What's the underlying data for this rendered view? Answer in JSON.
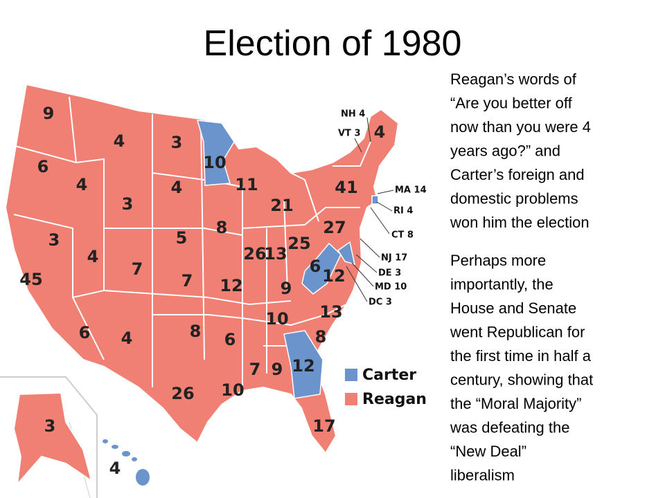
{
  "slide": {
    "title": "Election of 1980",
    "paragraphs": [
      [
        "Reagan’s words of",
        "“Are you better off",
        "now than you were 4",
        "years ago?” and",
        "Carter’s foreign and",
        "domestic problems",
        "won him the election"
      ],
      [
        "Perhaps more",
        "importantly, the",
        "House and Senate",
        "went Republican for",
        "the first time in half a",
        "century, showing that",
        "the “Moral Majority”",
        "was defeating the",
        "“New Deal”",
        "liberalism"
      ]
    ],
    "map": {
      "state_labels": [
        "9",
        "4",
        "3",
        "10",
        "6",
        "4",
        "4",
        "11",
        "3",
        "21",
        "41",
        "4",
        "8",
        "5",
        "27",
        "25",
        "3",
        "4",
        "7",
        "26",
        "13",
        "6",
        "12",
        "45",
        "7",
        "12",
        "9",
        "13",
        "10",
        "8",
        "6",
        "4",
        "6",
        "8",
        "12",
        "7",
        "9",
        "10",
        "26",
        "17",
        "3",
        "4"
      ],
      "small_state_labels": [
        "NH 4",
        "VT 3",
        "MA 14",
        "RI 4",
        "CT 8",
        "NJ 17",
        "DE 3",
        "MD 10",
        "DC 3"
      ],
      "legend": [
        "Carter",
        "Reagan"
      ]
    }
  }
}
